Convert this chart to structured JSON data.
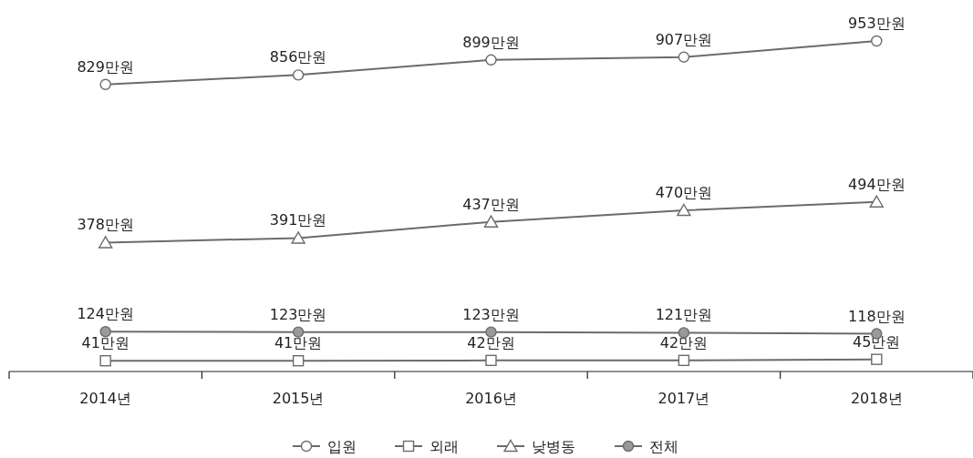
{
  "chart_data": {
    "type": "line",
    "categories": [
      "2014년",
      "2015년",
      "2016년",
      "2017년",
      "2018년"
    ],
    "legend": "bottom",
    "grid": false,
    "series": [
      {
        "name": "입원",
        "color": "#ffffff",
        "marker": "circle",
        "values": [
          829,
          856,
          899,
          907,
          953
        ],
        "value_labels": [
          "829만원",
          "856만원",
          "899만원",
          "907만원",
          "953만원"
        ]
      },
      {
        "name": "외래",
        "color": "#ffffff",
        "marker": "square",
        "values": [
          41,
          41,
          42,
          42,
          45
        ],
        "value_labels": [
          "41만원",
          "41만원",
          "42만원",
          "42만원",
          "45만원"
        ]
      },
      {
        "name": "낮병동",
        "color": "#ffffff",
        "marker": "triangle",
        "values": [
          378,
          391,
          437,
          470,
          494
        ],
        "value_labels": [
          "378만원",
          "391만원",
          "437만원",
          "470만원",
          "494만원"
        ]
      },
      {
        "name": "전체",
        "color": "#9a9a9a",
        "marker": "circle",
        "values": [
          124,
          123,
          123,
          121,
          118
        ],
        "value_labels": [
          "124만원",
          "123만원",
          "123만원",
          "121만원",
          "118만원"
        ]
      }
    ]
  }
}
